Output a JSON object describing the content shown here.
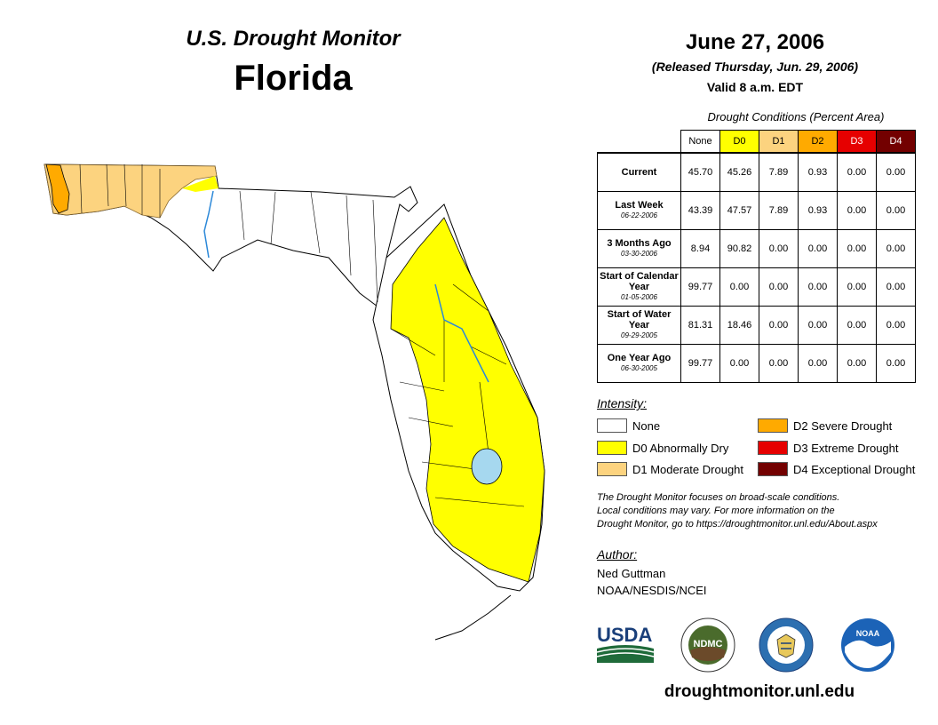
{
  "header": {
    "monitor_title": "U.S. Drought Monitor",
    "state": "Florida",
    "date": "June 27, 2006",
    "released": "(Released Thursday, Jun. 29, 2006)",
    "valid": "Valid 8 a.m. EDT"
  },
  "table": {
    "caption": "Drought Conditions (Percent Area)",
    "columns": [
      {
        "label": "None",
        "color": "#ffffff"
      },
      {
        "label": "D0",
        "color": "#ffff00"
      },
      {
        "label": "D1",
        "color": "#fcd37f"
      },
      {
        "label": "D2",
        "color": "#ffaa00"
      },
      {
        "label": "D3",
        "color": "#e60000"
      },
      {
        "label": "D4",
        "color": "#730000"
      }
    ],
    "rows": [
      {
        "label": "Current",
        "sub": "",
        "values": [
          "45.70",
          "45.26",
          "7.89",
          "0.93",
          "0.00",
          "0.00"
        ]
      },
      {
        "label": "Last Week",
        "sub": "06-22-2006",
        "values": [
          "43.39",
          "47.57",
          "7.89",
          "0.93",
          "0.00",
          "0.00"
        ]
      },
      {
        "label": "3 Months Ago",
        "sub": "03-30-2006",
        "values": [
          "8.94",
          "90.82",
          "0.00",
          "0.00",
          "0.00",
          "0.00"
        ]
      },
      {
        "label": "Start of Calendar Year",
        "sub": "01-05-2006",
        "values": [
          "99.77",
          "0.00",
          "0.00",
          "0.00",
          "0.00",
          "0.00"
        ]
      },
      {
        "label": "Start of Water Year",
        "sub": "09-29-2005",
        "values": [
          "81.31",
          "18.46",
          "0.00",
          "0.00",
          "0.00",
          "0.00"
        ]
      },
      {
        "label": "One Year Ago",
        "sub": "06-30-2005",
        "values": [
          "99.77",
          "0.00",
          "0.00",
          "0.00",
          "0.00",
          "0.00"
        ]
      }
    ]
  },
  "legend": {
    "title": "Intensity:",
    "items": [
      {
        "label": "None",
        "color": "#ffffff"
      },
      {
        "label": "D0 Abnormally Dry",
        "color": "#ffff00"
      },
      {
        "label": "D1 Moderate Drought",
        "color": "#fcd37f"
      },
      {
        "label": "D2 Severe Drought",
        "color": "#ffaa00"
      },
      {
        "label": "D3 Extreme Drought",
        "color": "#e60000"
      },
      {
        "label": "D4 Exceptional Drought",
        "color": "#730000"
      }
    ]
  },
  "note": {
    "line1": "The Drought Monitor focuses on broad-scale conditions.",
    "line2": "Local conditions may vary. For more information on the",
    "line3": "Drought Monitor, go to https://droughtmonitor.unl.edu/About.aspx"
  },
  "author": {
    "title": "Author:",
    "name": "Ned Guttman",
    "org": "NOAA/NESDIS/NCEI"
  },
  "logos": {
    "usda": "USDA",
    "ndmc": "NDMC",
    "noaa": "NOAA"
  },
  "website": "droughtmonitor.unl.edu"
}
